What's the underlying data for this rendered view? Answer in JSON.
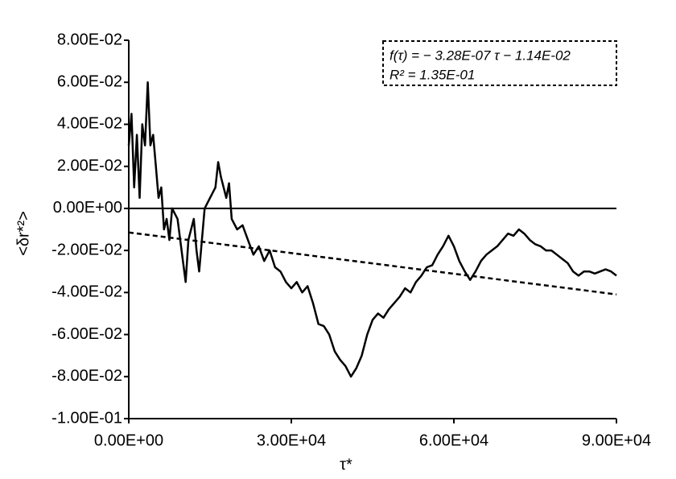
{
  "chart_data": {
    "type": "line",
    "xlabel": "τ*",
    "ylabel": "<δr*²>",
    "annotations": [
      "f(τ) = − 3.28E-07 τ − 1.14E-02",
      "R² = 1.35E-01"
    ],
    "xlim": [
      0,
      90000
    ],
    "ylim": [
      -0.1,
      0.08
    ],
    "xticks": [
      {
        "value": 0,
        "label": "0.00E+00"
      },
      {
        "value": 30000,
        "label": "3.00E+04"
      },
      {
        "value": 60000,
        "label": "6.00E+04"
      },
      {
        "value": 90000,
        "label": "9.00E+04"
      }
    ],
    "yticks": [
      {
        "value": -0.1,
        "label": "-1.00E-01"
      },
      {
        "value": -0.08,
        "label": "-8.00E-02"
      },
      {
        "value": -0.06,
        "label": "-6.00E-02"
      },
      {
        "value": -0.04,
        "label": "-4.00E-02"
      },
      {
        "value": -0.02,
        "label": "-2.00E-02"
      },
      {
        "value": 0,
        "label": "0.00E+00"
      },
      {
        "value": 0.02,
        "label": "2.00E-02"
      },
      {
        "value": 0.04,
        "label": "4.00E-02"
      },
      {
        "value": 0.06,
        "label": "6.00E-02"
      },
      {
        "value": 0.08,
        "label": "8.00E-02"
      }
    ],
    "series": [
      {
        "color": "#000000",
        "dash": false,
        "x": [
          0,
          500,
          1000,
          1500,
          2000,
          2500,
          3000,
          3500,
          4000,
          4500,
          5000,
          5500,
          6000,
          6500,
          7000,
          7500,
          8000,
          9000,
          10000,
          10500,
          11000,
          12000,
          12500,
          13000,
          14000,
          15000,
          16000,
          16500,
          17000,
          18000,
          18500,
          19000,
          20000,
          21000,
          22000,
          23000,
          24000,
          25000,
          26000,
          27000,
          28000,
          29000,
          30000,
          31000,
          32000,
          33000,
          34000,
          35000,
          36000,
          37000,
          38000,
          39000,
          40000,
          41000,
          42000,
          43000,
          44000,
          45000,
          46000,
          47000,
          48000,
          49000,
          50000,
          51000,
          52000,
          53000,
          54000,
          55000,
          56000,
          57000,
          58000,
          59000,
          60000,
          61000,
          62000,
          63000,
          64000,
          65000,
          66000,
          67000,
          68000,
          69000,
          70000,
          71000,
          72000,
          73000,
          74000,
          75000,
          76000,
          77000,
          78000,
          79000,
          80000,
          81000,
          82000,
          83000,
          84000,
          85000,
          86000,
          87000,
          88000,
          89000,
          90000
        ],
        "values": [
          0.03,
          0.045,
          0.01,
          0.035,
          0.005,
          0.04,
          0.03,
          0.06,
          0.03,
          0.035,
          0.02,
          0.005,
          0.01,
          -0.01,
          -0.005,
          -0.015,
          0.0,
          -0.005,
          -0.025,
          -0.035,
          -0.015,
          -0.005,
          -0.02,
          -0.03,
          0.0,
          0.005,
          0.01,
          0.022,
          0.015,
          0.005,
          0.012,
          -0.005,
          -0.01,
          -0.008,
          -0.015,
          -0.022,
          -0.018,
          -0.025,
          -0.02,
          -0.028,
          -0.03,
          -0.035,
          -0.038,
          -0.035,
          -0.04,
          -0.037,
          -0.045,
          -0.055,
          -0.056,
          -0.06,
          -0.068,
          -0.072,
          -0.075,
          -0.08,
          -0.076,
          -0.07,
          -0.06,
          -0.053,
          -0.05,
          -0.052,
          -0.048,
          -0.045,
          -0.042,
          -0.038,
          -0.04,
          -0.035,
          -0.032,
          -0.028,
          -0.027,
          -0.022,
          -0.018,
          -0.013,
          -0.018,
          -0.025,
          -0.03,
          -0.034,
          -0.03,
          -0.025,
          -0.022,
          -0.02,
          -0.018,
          -0.015,
          -0.012,
          -0.013,
          -0.01,
          -0.012,
          -0.015,
          -0.017,
          -0.018,
          -0.02,
          -0.02,
          -0.022,
          -0.024,
          -0.026,
          -0.03,
          -0.032,
          -0.03,
          -0.03,
          -0.031,
          -0.03,
          -0.029,
          -0.03,
          -0.032
        ]
      },
      {
        "color": "#000000",
        "dash": true,
        "x": [
          0,
          90000
        ],
        "values": [
          -0.0114,
          -0.04092
        ]
      }
    ]
  }
}
